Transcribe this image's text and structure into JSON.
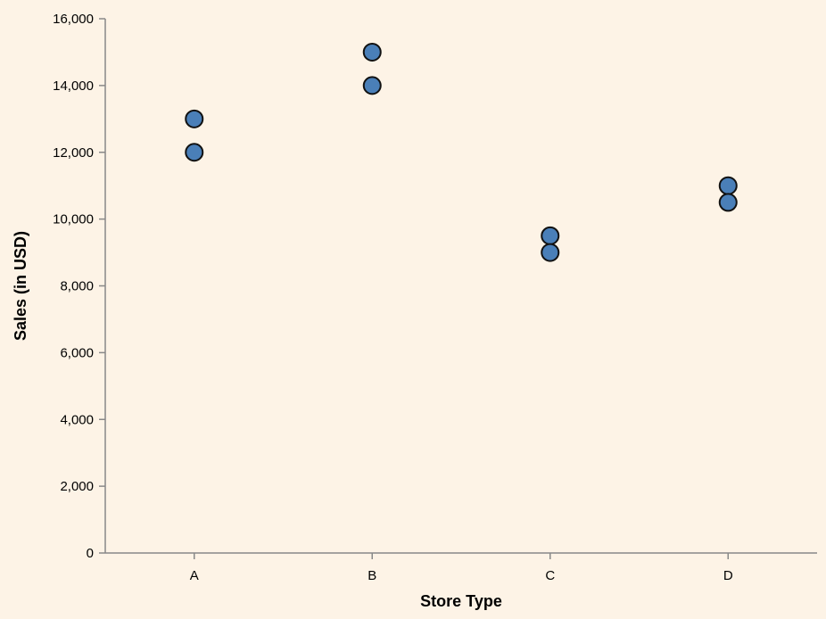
{
  "chart_data": {
    "type": "scatter",
    "title": "",
    "xlabel": "Store Type",
    "ylabel": "Sales (in USD)",
    "categories": [
      "A",
      "B",
      "C",
      "D"
    ],
    "points": [
      {
        "x": "A",
        "y": 13000
      },
      {
        "x": "A",
        "y": 12000
      },
      {
        "x": "B",
        "y": 15000
      },
      {
        "x": "B",
        "y": 14000
      },
      {
        "x": "C",
        "y": 9500
      },
      {
        "x": "C",
        "y": 9000
      },
      {
        "x": "D",
        "y": 11000
      },
      {
        "x": "D",
        "y": 10500
      }
    ],
    "ylim": [
      0,
      16000
    ],
    "yticks": [
      0,
      2000,
      4000,
      6000,
      8000,
      10000,
      12000,
      14000,
      16000
    ],
    "ytick_labels": [
      "0",
      "2,000",
      "4,000",
      "6,000",
      "8,000",
      "10,000",
      "12,000",
      "14,000",
      "16,000"
    ],
    "grid": false,
    "legend": "none",
    "colors": {
      "background": "#fdf3e6",
      "point_fill": "#4a7fb8",
      "point_stroke": "#111111",
      "axis": "#888888",
      "text": "#000000"
    }
  }
}
